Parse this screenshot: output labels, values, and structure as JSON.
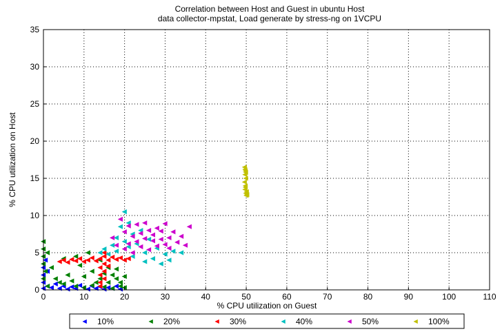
{
  "chart_data": {
    "type": "scatter",
    "title": "Correlation between Host and Guest in ubuntu Host",
    "subtitle": "data collector-mpstat, Load generate by stress-ng on 1VCPU",
    "xlabel": "% CPU utilization on Guest",
    "ylabel": "% CPU utilization on Host",
    "xlim": [
      0,
      110
    ],
    "ylim": [
      0,
      35
    ],
    "xticks": [
      0,
      10,
      20,
      30,
      40,
      50,
      60,
      70,
      80,
      90,
      100,
      110
    ],
    "yticks": [
      0,
      5,
      10,
      15,
      20,
      25,
      30,
      35
    ],
    "grid": true,
    "marker": "left-pointing triangle",
    "legend_position": "bottom",
    "series": [
      {
        "name": "10%",
        "color": "#0000ff",
        "points": [
          [
            0,
            0.2
          ],
          [
            0,
            1.0
          ],
          [
            0,
            2.0
          ],
          [
            0,
            3.0
          ],
          [
            0.5,
            4.0
          ],
          [
            1,
            0.5
          ],
          [
            1,
            2.5
          ],
          [
            2,
            0.3
          ],
          [
            3,
            0.8
          ],
          [
            4,
            0.2
          ],
          [
            5,
            0.5
          ],
          [
            6,
            0.1
          ],
          [
            7,
            0.4
          ],
          [
            8,
            0.2
          ],
          [
            9,
            0.6
          ],
          [
            10,
            0.3
          ],
          [
            11,
            0.1
          ],
          [
            12,
            0.5
          ],
          [
            13,
            0.2
          ],
          [
            14,
            0.4
          ],
          [
            15,
            0.1
          ],
          [
            16,
            0.3
          ],
          [
            17,
            0.2
          ],
          [
            18,
            0.5
          ],
          [
            19,
            0.1
          ]
        ]
      },
      {
        "name": "20%",
        "color": "#008000",
        "points": [
          [
            0,
            6.5
          ],
          [
            0,
            5.5
          ],
          [
            0,
            4.5
          ],
          [
            0,
            3.5
          ],
          [
            0.5,
            2.5
          ],
          [
            0,
            1.5
          ],
          [
            1,
            5.0
          ],
          [
            1,
            0.5
          ],
          [
            2,
            3.0
          ],
          [
            3,
            1.5
          ],
          [
            4,
            1.0
          ],
          [
            5,
            4.2
          ],
          [
            5,
            0.8
          ],
          [
            6,
            2.0
          ],
          [
            7,
            1.2
          ],
          [
            8,
            4.5
          ],
          [
            8,
            0.5
          ],
          [
            9,
            3.3
          ],
          [
            10,
            1.8
          ],
          [
            10,
            0.3
          ],
          [
            11,
            5.0
          ],
          [
            12,
            2.5
          ],
          [
            12,
            0.6
          ],
          [
            13,
            1.0
          ],
          [
            14,
            4.0
          ],
          [
            14,
            1.5
          ],
          [
            15,
            2.2
          ],
          [
            15,
            0.4
          ],
          [
            16,
            3.0
          ],
          [
            16,
            1.0
          ],
          [
            17,
            2.0
          ],
          [
            17,
            0.2
          ],
          [
            18,
            1.5
          ],
          [
            18,
            2.8
          ],
          [
            19,
            1.0
          ],
          [
            19,
            0.5
          ],
          [
            20,
            1.8
          ],
          [
            20,
            0.3
          ]
        ]
      },
      {
        "name": "30%",
        "color": "#ff0000",
        "points": [
          [
            4,
            3.8
          ],
          [
            5,
            4.0
          ],
          [
            6,
            3.7
          ],
          [
            7,
            4.1
          ],
          [
            8,
            3.9
          ],
          [
            9,
            4.2
          ],
          [
            10,
            3.8
          ],
          [
            11,
            4.0
          ],
          [
            12,
            4.3
          ],
          [
            13,
            3.9
          ],
          [
            14,
            4.2
          ],
          [
            14,
            3.0
          ],
          [
            14,
            2.0
          ],
          [
            14,
            1.0
          ],
          [
            14,
            0.5
          ],
          [
            15,
            4.5
          ],
          [
            15,
            3.5
          ],
          [
            15,
            2.5
          ],
          [
            15,
            1.5
          ],
          [
            15,
            5.0
          ],
          [
            16,
            4.0
          ],
          [
            16,
            3.2
          ],
          [
            17,
            4.4
          ],
          [
            18,
            4.1
          ],
          [
            19,
            4.3
          ],
          [
            20,
            4.0
          ],
          [
            21,
            4.2
          ]
        ]
      },
      {
        "name": "40%",
        "color": "#00c0c0",
        "points": [
          [
            14,
            5.0
          ],
          [
            15,
            5.5
          ],
          [
            16,
            4.8
          ],
          [
            17,
            6.0
          ],
          [
            18,
            5.2
          ],
          [
            18,
            7.0
          ],
          [
            19,
            8.5
          ],
          [
            20,
            10.5
          ],
          [
            20,
            6.5
          ],
          [
            21,
            5.8
          ],
          [
            21,
            9.0
          ],
          [
            22,
            7.5
          ],
          [
            22,
            4.5
          ],
          [
            23,
            6.2
          ],
          [
            24,
            8.0
          ],
          [
            25,
            5.0
          ],
          [
            25,
            3.8
          ],
          [
            26,
            6.8
          ],
          [
            27,
            4.2
          ],
          [
            28,
            5.6
          ],
          [
            29,
            3.5
          ],
          [
            30,
            4.8
          ],
          [
            31,
            4.0
          ],
          [
            32,
            5.2
          ],
          [
            34,
            5.0
          ]
        ]
      },
      {
        "name": "50%",
        "color": "#cc00cc",
        "points": [
          [
            17,
            7.0
          ],
          [
            18,
            6.0
          ],
          [
            19,
            9.5
          ],
          [
            20,
            5.5
          ],
          [
            20,
            7.8
          ],
          [
            21,
            6.2
          ],
          [
            21,
            8.6
          ],
          [
            22,
            5.0
          ],
          [
            22,
            7.2
          ],
          [
            23,
            6.5
          ],
          [
            23,
            8.8
          ],
          [
            24,
            5.8
          ],
          [
            24,
            7.6
          ],
          [
            25,
            6.9
          ],
          [
            25,
            9.0
          ],
          [
            26,
            5.4
          ],
          [
            26,
            8.0
          ],
          [
            27,
            6.6
          ],
          [
            27,
            7.4
          ],
          [
            28,
            5.9
          ],
          [
            28,
            8.3
          ],
          [
            29,
            6.8
          ],
          [
            29,
            7.9
          ],
          [
            30,
            6.1
          ],
          [
            30,
            8.9
          ],
          [
            31,
            7.0
          ],
          [
            31,
            5.6
          ],
          [
            32,
            7.8
          ],
          [
            33,
            6.4
          ],
          [
            34,
            7.2
          ],
          [
            35,
            6.0
          ],
          [
            36,
            8.5
          ]
        ]
      },
      {
        "name": "100%",
        "color": "#c0c000",
        "points": [
          [
            49.6,
            16.5
          ],
          [
            49.8,
            16.0
          ],
          [
            49.7,
            15.5
          ],
          [
            49.9,
            15.0
          ],
          [
            49.6,
            14.5
          ],
          [
            49.8,
            14.0
          ],
          [
            49.7,
            13.5
          ],
          [
            49.9,
            13.0
          ],
          [
            50.0,
            12.7
          ],
          [
            50.2,
            12.8
          ],
          [
            49.8,
            13.8
          ],
          [
            50.1,
            13.2
          ],
          [
            49.7,
            16.2
          ],
          [
            49.9,
            15.8
          ]
        ]
      }
    ]
  }
}
